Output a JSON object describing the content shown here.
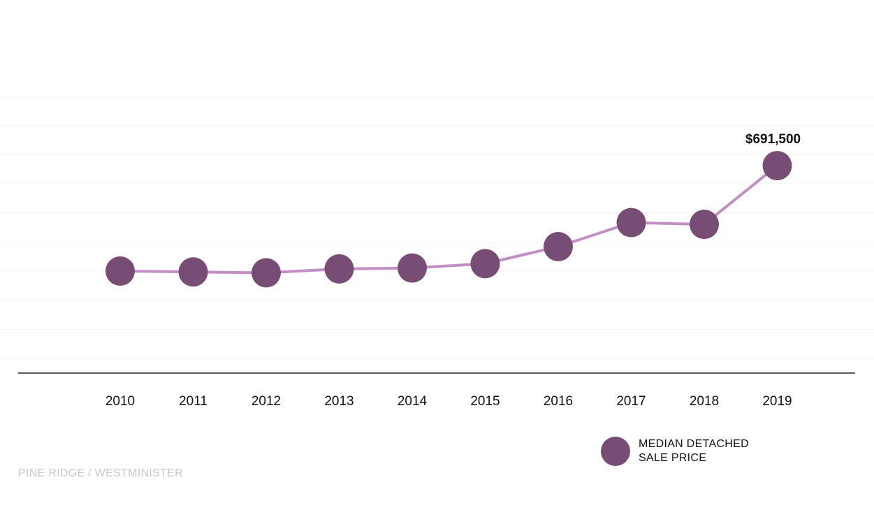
{
  "chart_data": {
    "type": "line",
    "title": "",
    "xlabel": "",
    "ylabel": "",
    "categories": [
      "2010",
      "2011",
      "2012",
      "2013",
      "2014",
      "2015",
      "2016",
      "2017",
      "2018",
      "2019"
    ],
    "series": [
      {
        "name": "MEDIAN DETACHED SALE PRICE",
        "values": [
          450000,
          448000,
          446000,
          455000,
          457000,
          467000,
          506000,
          561000,
          557000,
          691500
        ]
      }
    ],
    "ylim": [
      250000,
      850000
    ],
    "grid": true,
    "legend_position": "bottom-right",
    "annotations": [
      {
        "category": "2019",
        "text": "$691,500"
      }
    ],
    "line_color": "#c38ec4",
    "marker_color": "#774d75"
  },
  "legend": {
    "line1": "MEDIAN DETACHED",
    "line2": "SALE PRICE"
  },
  "footer": {
    "text": "PINE RIDGE / WESTMINISTER"
  }
}
